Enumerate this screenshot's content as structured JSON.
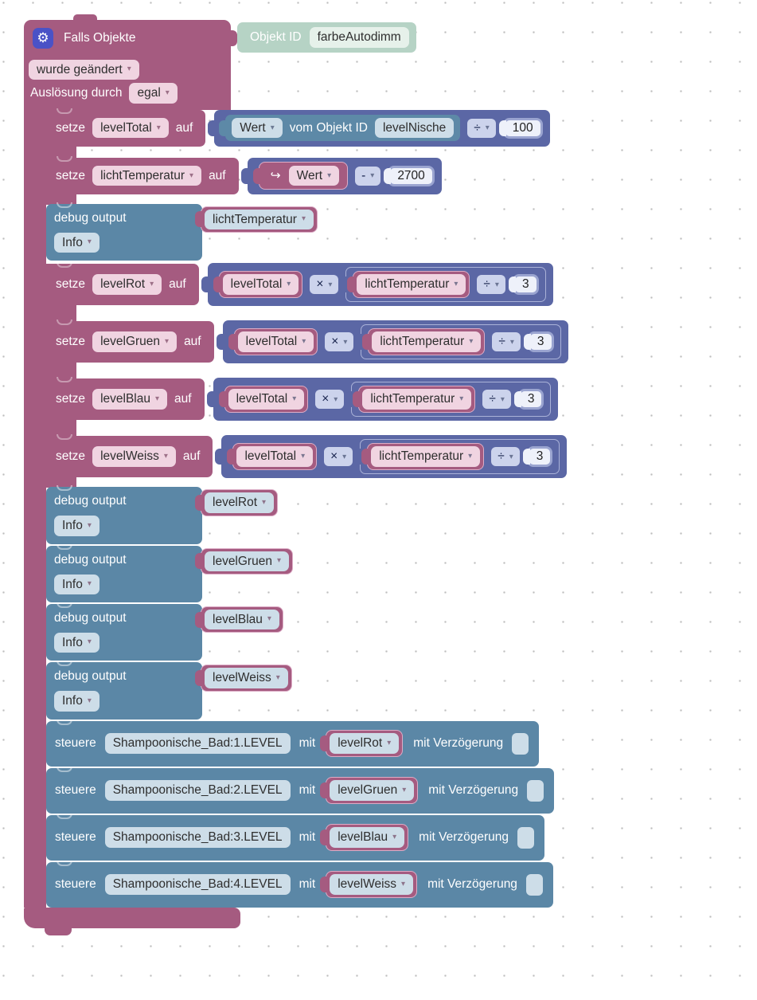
{
  "icons": {
    "gear": "⚙",
    "trigger_arrow": "↪"
  },
  "colors": {
    "block_pink": "#a55b80",
    "block_purple": "#5b67a5",
    "block_blue": "#5b87a6",
    "block_teal": "#b6d3c5",
    "gear_badge": "#4a52c6",
    "field_pink": "#f0d4e1",
    "field_blue": "#cddde8",
    "field_purple": "#ccd3ec"
  },
  "trigger": {
    "title": "Falls Objekte",
    "objekt_label": "Objekt ID",
    "objekt_value": "farbeAutodimm",
    "change_mode": "wurde geändert",
    "by_label": "Auslösung durch",
    "by_value": "egal"
  },
  "rows": [
    {
      "kw": "setze",
      "var": "levelTotal",
      "auf": "auf",
      "value": {
        "wert": "Wert",
        "vom": "vom Objekt ID",
        "oid": "levelNische",
        "op": "÷",
        "num": "100"
      }
    },
    {
      "kw": "setze",
      "var": "lichtTemperatur",
      "auf": "auf",
      "value": {
        "arrow": "↪",
        "wert": "Wert",
        "op": "-",
        "num": "2700"
      }
    },
    {
      "kw": "debug output",
      "var": "lichtTemperatur",
      "level": "Info"
    },
    {
      "kw": "setze",
      "var": "levelRot",
      "auf": "auf",
      "a": "levelTotal",
      "op1": "×",
      "b": "lichtTemperatur",
      "op2": "÷",
      "num": "3"
    },
    {
      "kw": "setze",
      "var": "levelGruen",
      "auf": "auf",
      "a": "levelTotal",
      "op1": "×",
      "b": "lichtTemperatur",
      "op2": "÷",
      "num": "3"
    },
    {
      "kw": "setze",
      "var": "levelBlau",
      "auf": "auf",
      "a": "levelTotal",
      "op1": "×",
      "b": "lichtTemperatur",
      "op2": "÷",
      "num": "3"
    },
    {
      "kw": "setze",
      "var": "levelWeiss",
      "auf": "auf",
      "a": "levelTotal",
      "op1": "×",
      "b": "lichtTemperatur",
      "op2": "÷",
      "num": "3"
    },
    {
      "kw": "debug output",
      "var": "levelRot",
      "level": "Info"
    },
    {
      "kw": "debug output",
      "var": "levelGruen",
      "level": "Info"
    },
    {
      "kw": "debug output",
      "var": "levelBlau",
      "level": "Info"
    },
    {
      "kw": "debug output",
      "var": "levelWeiss",
      "level": "Info"
    },
    {
      "kw": "steuere",
      "oid": "Shampoonische_Bad:1.LEVEL",
      "mit": "mit",
      "var": "levelRot",
      "delay": "mit Verzögerung"
    },
    {
      "kw": "steuere",
      "oid": "Shampoonische_Bad:2.LEVEL",
      "mit": "mit",
      "var": "levelGruen",
      "delay": "mit Verzögerung"
    },
    {
      "kw": "steuere",
      "oid": "Shampoonische_Bad:3.LEVEL",
      "mit": "mit",
      "var": "levelBlau",
      "delay": "mit Verzögerung"
    },
    {
      "kw": "steuere",
      "oid": "Shampoonische_Bad:4.LEVEL",
      "mit": "mit",
      "var": "levelWeiss",
      "delay": "mit Verzögerung"
    }
  ]
}
